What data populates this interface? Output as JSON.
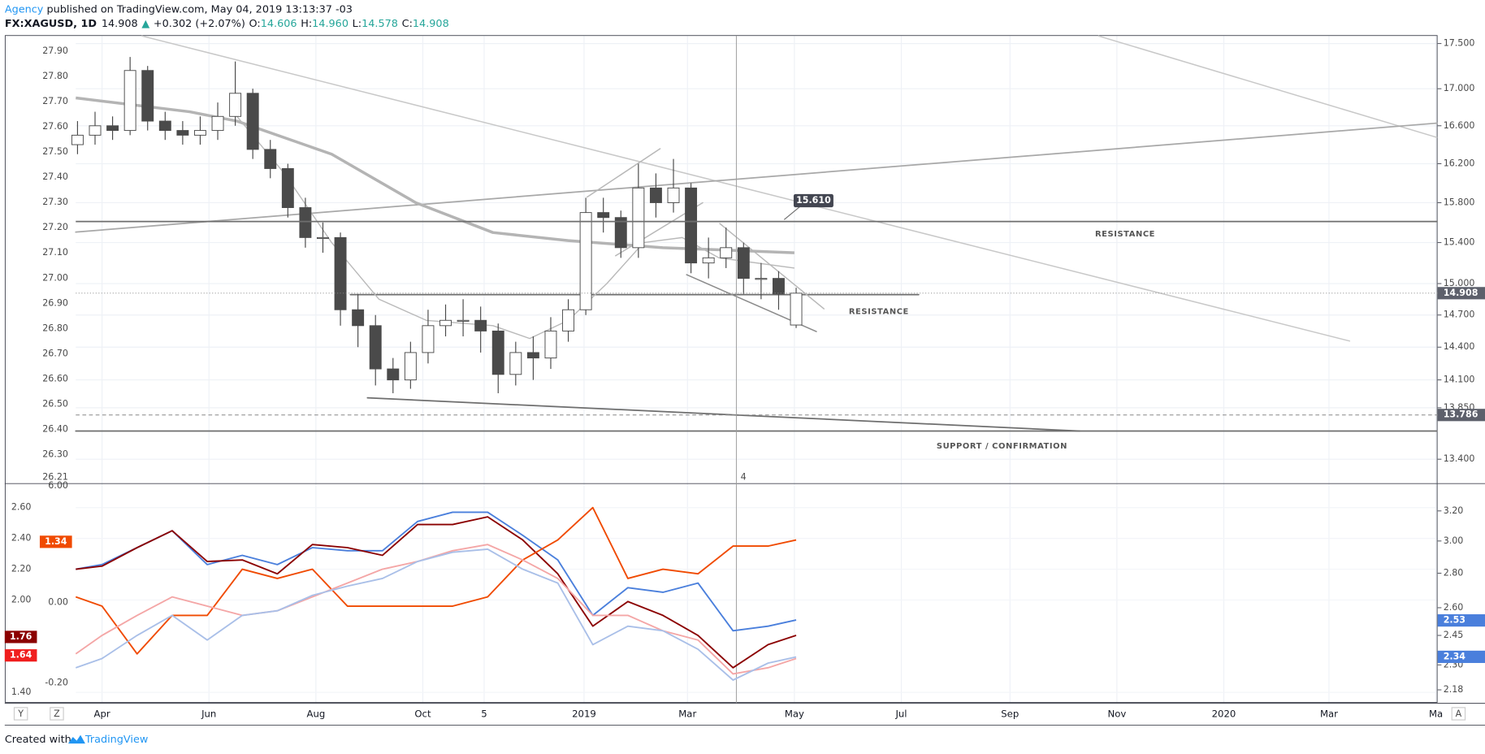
{
  "header": {
    "publisher": "Agency",
    "published": "published on TradingView.com, May 04, 2019 13:13:37 -03",
    "symbol": "FX:XAGUSD, 1D",
    "last": "14.908",
    "arrow": "▲",
    "change": "+0.302 (+2.07%)",
    "ohlc": [
      {
        "key": "O:",
        "value": "14.606"
      },
      {
        "key": "H:",
        "value": "14.960"
      },
      {
        "key": "L:",
        "value": "14.578"
      },
      {
        "key": "C:",
        "value": "14.908"
      }
    ]
  },
  "footer": {
    "created": "Created with",
    "brand": "TradingView"
  },
  "buttons": [
    "Y",
    "Z",
    "A"
  ],
  "chart_data": [
    {
      "type": "candlestick",
      "x": [
        -14,
        -4,
        6,
        16,
        26,
        36,
        46,
        56,
        66,
        76,
        86,
        96,
        106,
        116,
        126,
        136,
        146,
        156,
        166,
        176,
        186,
        196,
        206,
        216,
        226,
        236,
        246,
        256,
        266,
        276,
        286,
        296,
        306,
        316,
        326,
        336,
        346,
        356,
        366,
        376,
        386,
        396
      ],
      "open": [
        16.4,
        16.5,
        16.6,
        16.55,
        17.2,
        16.65,
        16.55,
        16.5,
        16.55,
        16.7,
        16.95,
        16.35,
        16.15,
        15.75,
        15.45,
        15.45,
        14.75,
        14.6,
        14.2,
        14.1,
        14.35,
        14.6,
        14.65,
        14.65,
        14.55,
        14.15,
        14.35,
        14.3,
        14.55,
        14.75,
        15.7,
        15.65,
        15.35,
        15.95,
        15.8,
        15.95,
        15.2,
        15.25,
        15.35,
        15.05,
        15.05,
        14.606
      ],
      "high": [
        16.65,
        16.75,
        16.7,
        17.35,
        17.25,
        16.75,
        16.65,
        16.7,
        16.85,
        17.3,
        17.0,
        16.45,
        16.2,
        15.85,
        15.6,
        15.5,
        14.9,
        14.7,
        14.3,
        14.45,
        14.75,
        14.8,
        14.85,
        14.78,
        14.62,
        14.45,
        14.5,
        14.68,
        14.85,
        15.85,
        15.85,
        15.72,
        16.2,
        16.1,
        16.25,
        16.0,
        15.45,
        15.55,
        15.4,
        15.2,
        15.12,
        14.96
      ],
      "low": [
        16.3,
        16.4,
        16.45,
        16.5,
        16.55,
        16.45,
        16.4,
        16.4,
        16.45,
        16.6,
        16.25,
        16.05,
        15.65,
        15.35,
        15.3,
        14.6,
        14.4,
        14.05,
        13.98,
        14.02,
        14.25,
        14.5,
        14.5,
        14.35,
        13.98,
        14.05,
        14.1,
        14.2,
        14.45,
        14.7,
        15.5,
        15.25,
        15.25,
        15.65,
        15.7,
        15.1,
        15.05,
        15.15,
        14.9,
        14.85,
        14.75,
        14.578
      ],
      "close": [
        16.5,
        16.6,
        16.55,
        17.2,
        16.65,
        16.55,
        16.5,
        16.55,
        16.7,
        16.95,
        16.35,
        16.15,
        15.75,
        15.45,
        15.45,
        14.75,
        14.6,
        14.2,
        14.1,
        14.35,
        14.6,
        14.65,
        14.65,
        14.55,
        14.15,
        14.35,
        14.3,
        14.55,
        14.75,
        15.7,
        15.65,
        15.35,
        15.95,
        15.8,
        15.95,
        15.2,
        15.25,
        15.35,
        15.05,
        15.05,
        14.9,
        14.908
      ],
      "up_color": "#ffffff",
      "down_color": "#4a4a4a",
      "wick_color": "#4a4a4a",
      "overlays": [
        {
          "color": "#b4b4b4",
          "width": 3,
          "x": [
            -15,
            50,
            77,
            131,
            179,
            223,
            266,
            320,
            395
          ],
          "values": [
            16.9,
            16.75,
            16.65,
            16.3,
            15.8,
            15.5,
            15.42,
            15.35,
            15.3
          ]
        },
        {
          "color": "#b9b9b9",
          "width": 1.2,
          "x": [
            77,
            104,
            131,
            158,
            185,
            223,
            244,
            266,
            288,
            309,
            331,
            352,
            395
          ],
          "values": [
            16.7,
            16.1,
            15.4,
            14.85,
            14.65,
            14.6,
            14.48,
            14.65,
            15.0,
            15.4,
            15.45,
            15.25,
            15.15
          ]
        }
      ],
      "xlim": [
        -15,
        762
      ],
      "xticks": [
        {
          "value": 0,
          "label": "Apr"
        },
        {
          "value": 61,
          "label": "Jun"
        },
        {
          "value": 122,
          "label": "Aug"
        },
        {
          "value": 183,
          "label": "Oct"
        },
        {
          "value": 218,
          "label": "5"
        },
        {
          "value": 275,
          "label": "2019"
        },
        {
          "value": 334,
          "label": "Mar"
        },
        {
          "value": 395,
          "label": "May"
        },
        {
          "value": 456,
          "label": "Jul"
        },
        {
          "value": 518,
          "label": "Sep"
        },
        {
          "value": 579,
          "label": "Nov"
        },
        {
          "value": 640,
          "label": "2020"
        },
        {
          "value": 700,
          "label": "Mar"
        },
        {
          "value": 761,
          "label": "Ma"
        }
      ],
      "ylim": [
        13.196,
        17.596
      ],
      "log": true,
      "yticks": [
        {
          "value": 17.5,
          "label": "17.500"
        },
        {
          "value": 17,
          "label": "17.000"
        },
        {
          "value": 16.6,
          "label": "16.600"
        },
        {
          "value": 16.2,
          "label": "16.200"
        },
        {
          "value": 15.8,
          "label": "15.800"
        },
        {
          "value": 15.4,
          "label": "15.400"
        },
        {
          "value": 15,
          "label": "15.000"
        },
        {
          "value": 14.7,
          "label": "14.700"
        },
        {
          "value": 14.4,
          "label": "14.400"
        },
        {
          "value": 14.1,
          "label": "14.100"
        },
        {
          "value": 13.85,
          "label": "13.850"
        },
        {
          "value": 13.4,
          "label": "13.400"
        }
      ],
      "y2lim": [
        26.187,
        27.964
      ],
      "y2ticks": [
        {
          "value": 27.9,
          "label": "27.90"
        },
        {
          "value": 27.8,
          "label": "27.80"
        },
        {
          "value": 27.7,
          "label": "27.70"
        },
        {
          "value": 27.6,
          "label": "27.60"
        },
        {
          "value": 27.5,
          "label": "27.50"
        },
        {
          "value": 27.4,
          "label": "27.40"
        },
        {
          "value": 27.3,
          "label": "27.30"
        },
        {
          "value": 27.2,
          "label": "27.20"
        },
        {
          "value": 27.1,
          "label": "27.10"
        },
        {
          "value": 27,
          "label": "27.00"
        },
        {
          "value": 26.9,
          "label": "26.90"
        },
        {
          "value": 26.8,
          "label": "26.80"
        },
        {
          "value": 26.7,
          "label": "26.70"
        },
        {
          "value": 26.6,
          "label": "26.60"
        },
        {
          "value": 26.5,
          "label": "26.50"
        },
        {
          "value": 26.4,
          "label": "26.40"
        },
        {
          "value": 26.3,
          "label": "26.30"
        },
        26.21
      ],
      "grid": true,
      "level": {
        "value": 15.61,
        "label": "15.610"
      },
      "price_tags": [
        {
          "value": 14.908,
          "color": "#5d606b"
        },
        {
          "value": 13.786,
          "color": "#5d606b"
        }
      ],
      "annotations": [
        "RESISTANCE",
        "RESISTANCE",
        "SUPPORT / CONFIRMATION"
      ],
      "crosshair_label": "4"
    },
    {
      "type": "line",
      "x": [
        -15,
        0,
        20,
        40,
        60,
        80,
        100,
        120,
        140,
        160,
        180,
        200,
        220,
        240,
        260,
        280,
        300,
        320,
        340,
        360,
        380,
        396
      ],
      "series": [
        {
          "color": "#4a7fdc",
          "values": [
            2.2,
            2.23,
            2.34,
            2.45,
            2.23,
            2.29,
            2.23,
            2.34,
            2.32,
            2.32,
            2.51,
            2.57,
            2.57,
            2.42,
            2.26,
            1.9,
            2.08,
            2.05,
            2.11,
            1.8,
            1.83,
            1.87
          ]
        },
        {
          "color": "#8b0000",
          "values": [
            2.2,
            2.22,
            2.34,
            2.45,
            2.25,
            2.26,
            2.17,
            2.36,
            2.34,
            2.29,
            2.49,
            2.49,
            2.54,
            2.39,
            2.17,
            1.83,
            1.99,
            1.9,
            1.77,
            1.56,
            1.71,
            1.77
          ]
        },
        {
          "color": "#f04a00",
          "values": [
            2.02,
            1.96,
            1.65,
            1.9,
            1.9,
            2.2,
            2.14,
            2.2,
            1.96,
            1.96,
            1.96,
            1.96,
            2.02,
            2.26,
            2.39,
            2.6,
            2.14,
            2.2,
            2.17,
            2.35,
            2.35,
            2.39
          ]
        },
        {
          "color": "#f4a6a6",
          "values": [
            1.65,
            1.77,
            1.9,
            2.02,
            1.96,
            1.9,
            1.93,
            2.02,
            2.11,
            2.2,
            2.25,
            2.32,
            2.36,
            2.26,
            2.14,
            1.9,
            1.9,
            1.8,
            1.74,
            1.52,
            1.56,
            1.62
          ]
        },
        {
          "color": "#a9bfe8",
          "values": [
            1.56,
            1.62,
            1.77,
            1.9,
            1.74,
            1.9,
            1.93,
            2.03,
            2.09,
            2.14,
            2.25,
            2.31,
            2.33,
            2.2,
            2.11,
            1.71,
            1.83,
            1.8,
            1.68,
            1.48,
            1.59,
            1.63
          ]
        }
      ],
      "xlim": [
        -15,
        762
      ],
      "ylim": [
        1.332,
        2.753
      ],
      "yticks": [
        {
          "value": 2.6,
          "label": "2.60"
        },
        {
          "value": 2.4,
          "label": "2.40"
        },
        {
          "value": 2.2,
          "label": "2.20"
        },
        {
          "value": 2,
          "label": "2.00"
        },
        {
          "value": 1.4,
          "label": "1.40"
        }
      ],
      "y2lim": [
        2.12,
        3.39
      ],
      "y2log": true,
      "y2ticks": [
        {
          "value": 3.2,
          "label": "3.20"
        },
        {
          "value": 3,
          "label": "3.00"
        },
        {
          "value": 2.8,
          "label": "2.80"
        },
        {
          "value": 2.6,
          "label": "2.60"
        },
        {
          "value": 2.45,
          "label": "2.45"
        },
        {
          "value": 2.3,
          "label": "2.30"
        },
        {
          "value": 2.18,
          "label": "2.18"
        }
      ],
      "y3ticks": [
        {
          "value": 6,
          "label": "6.00"
        },
        {
          "value": 0,
          "label": "0.00"
        },
        {
          "value": -0.2,
          "label": "-0.20"
        }
      ],
      "tags": [
        {
          "value": 1.34,
          "color": "#f04a00",
          "axis": "y3"
        },
        {
          "value": 1.76,
          "color": "#8b0000",
          "axis": "y"
        },
        {
          "value": 1.64,
          "color": "#f01e1e",
          "axis": "y"
        },
        {
          "value": 2.53,
          "color": "#4a7fdc",
          "axis": "y2"
        },
        {
          "value": 2.34,
          "color": "#4a7fdc",
          "axis": "y2"
        }
      ],
      "grid": true
    }
  ]
}
